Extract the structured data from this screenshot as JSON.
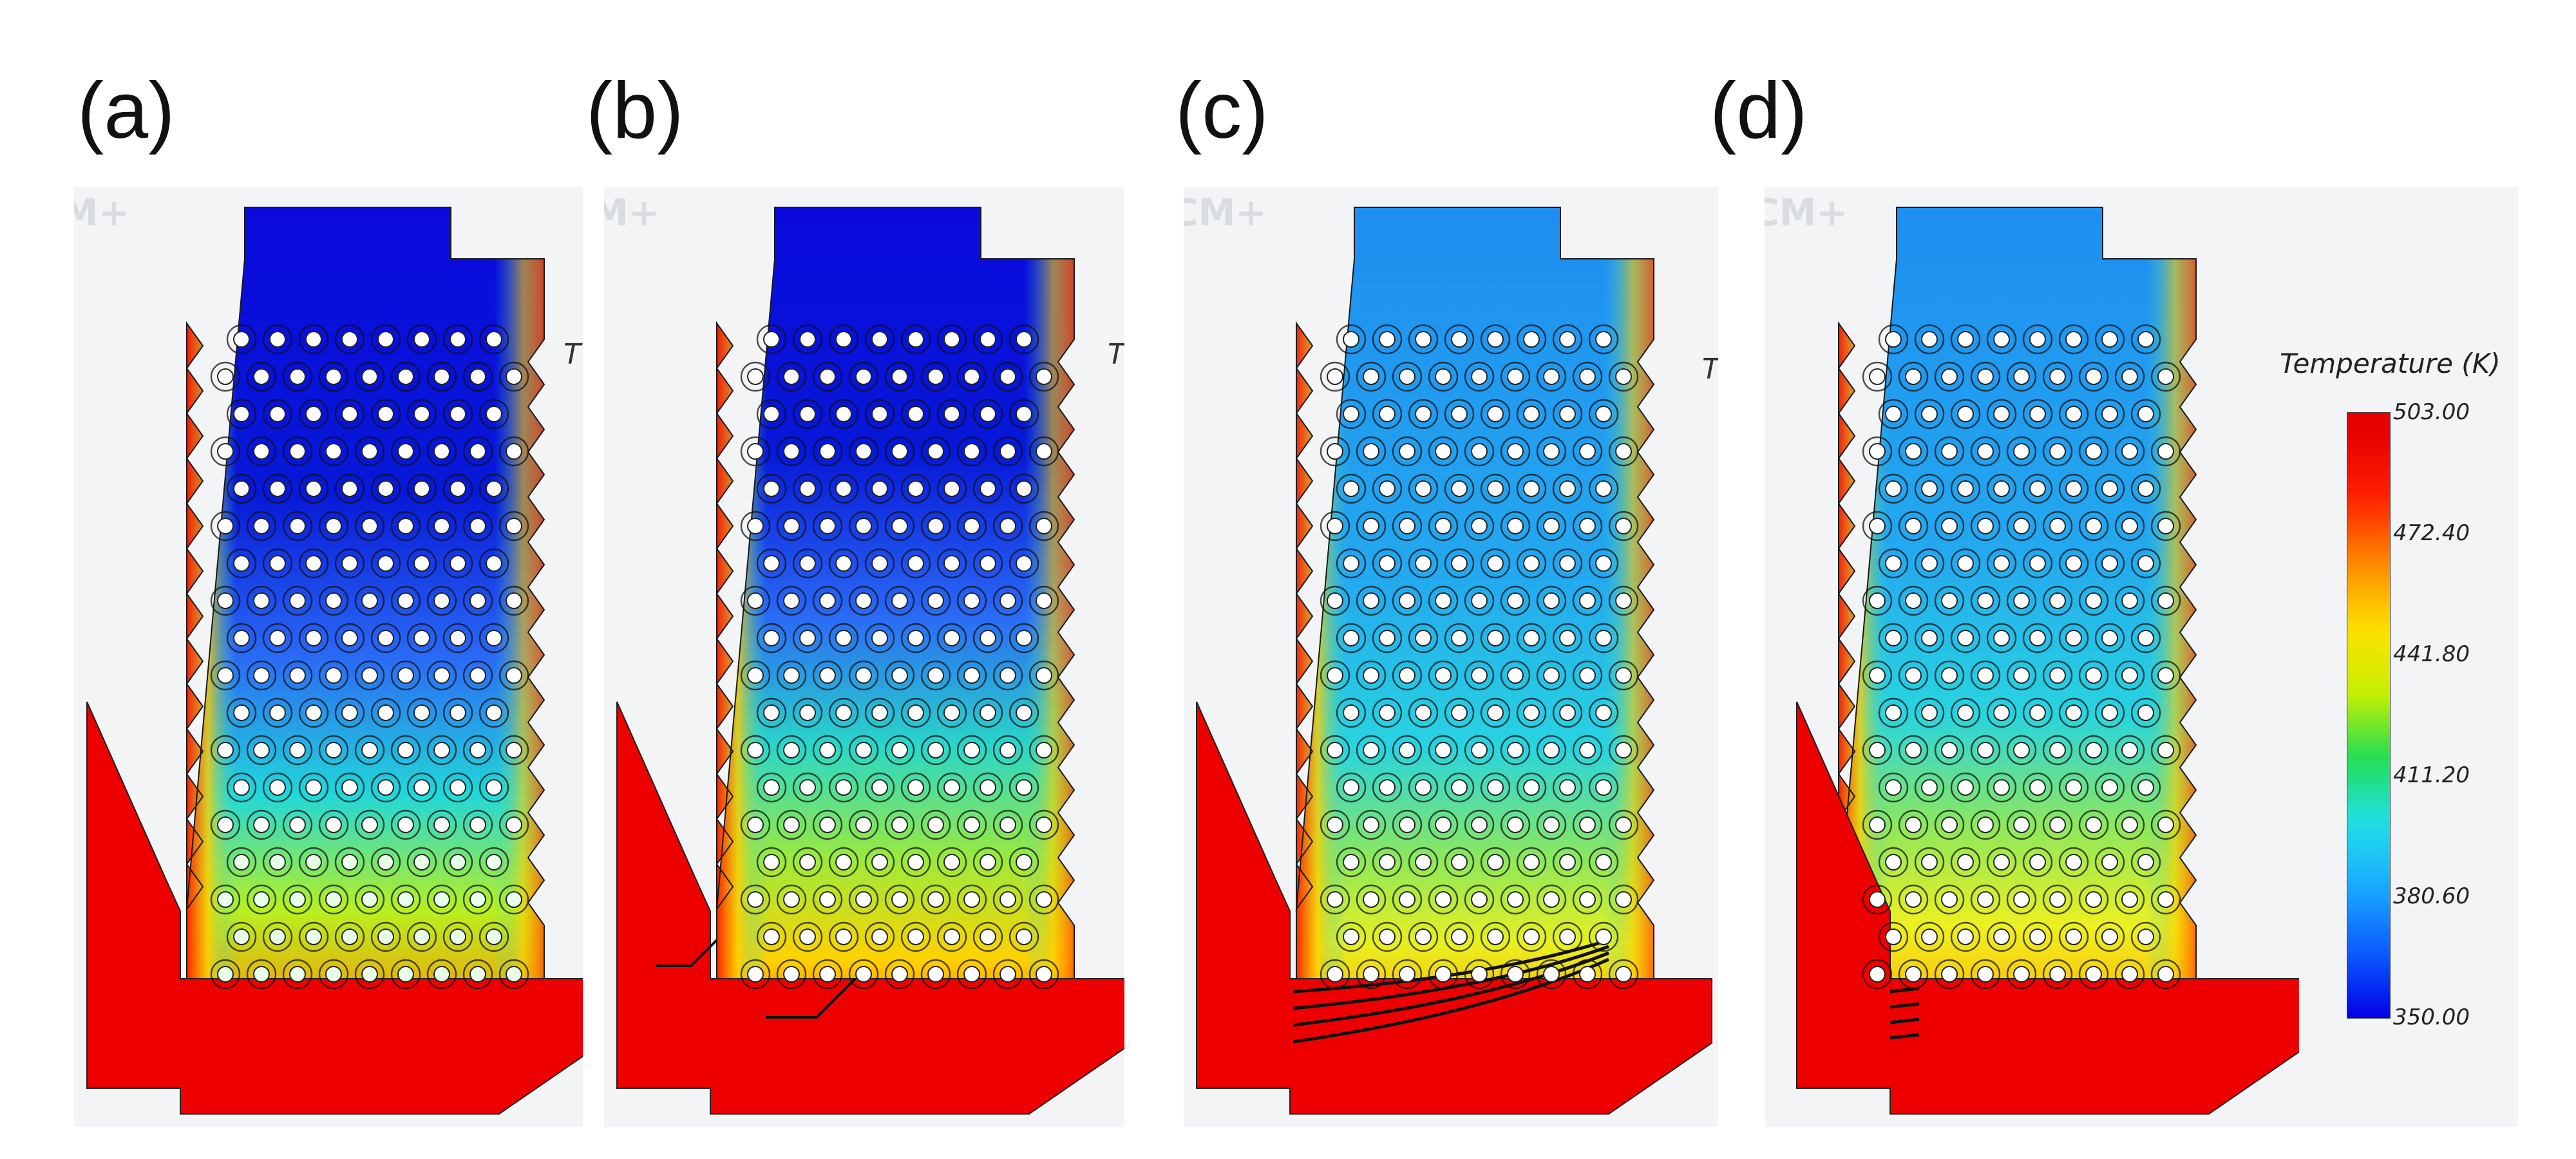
{
  "panels": [
    {
      "label": "(a)",
      "watermark": "M+",
      "t_peek": "T",
      "state": "a"
    },
    {
      "label": "(b)",
      "watermark": "M+",
      "t_peek": "T",
      "state": "b"
    },
    {
      "label": "(c)",
      "watermark": "CM+",
      "t_peek": "T",
      "state": "c"
    },
    {
      "label": "(d)",
      "watermark": "CM+",
      "t_peek": "",
      "state": "d"
    }
  ],
  "legend": {
    "title": "Temperature (K)",
    "min": 350.0,
    "max": 503.0,
    "ticks": [
      "503.00",
      "472.40",
      "441.80",
      "411.20",
      "380.60",
      "350.00"
    ],
    "colors": [
      "#0000e6",
      "#0a5cff",
      "#1aa8ff",
      "#20e0e8",
      "#22dd55",
      "#c8f000",
      "#ffe000",
      "#ff8a00",
      "#ff2000",
      "#e60000"
    ]
  }
}
